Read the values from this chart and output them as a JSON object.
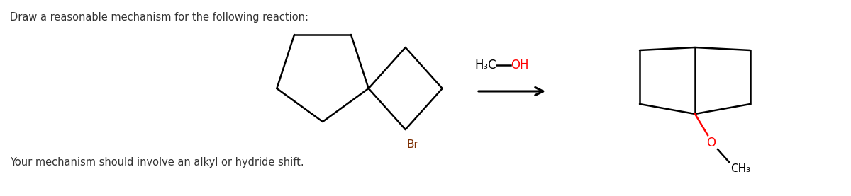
{
  "title_text": "Draw a reasonable mechanism for the following reaction:",
  "footer_text": "Your mechanism should involve an alkyl or hydride shift.",
  "br_text": "Br",
  "o_text": "O",
  "ch3_text": "CH₃",
  "h3c_text": "H₃C",
  "oh_text": "OH",
  "line_color": "#000000",
  "br_color": "#7B2D00",
  "red_color": "#FF0000",
  "bg_color": "#FFFFFF",
  "title_fontsize": 10.5,
  "footer_fontsize": 10.5,
  "label_fontsize": 11
}
